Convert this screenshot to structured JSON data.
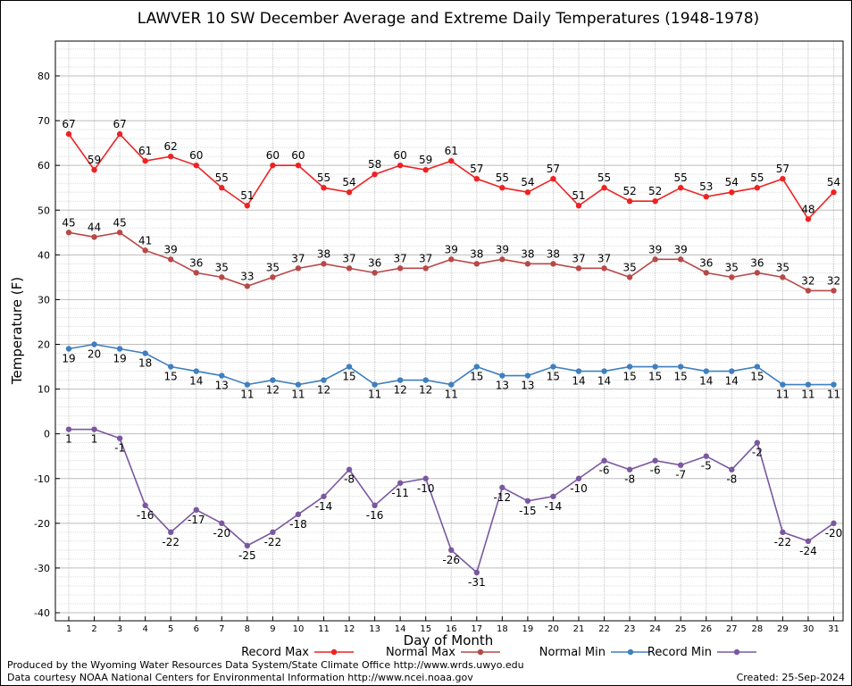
{
  "chart_data": {
    "type": "line",
    "title": "LAWVER 10 SW December Average and Extreme Daily Temperatures (1948-1978)",
    "xlabel": "Day of Month",
    "ylabel": "Temperature (F)",
    "ylim": [
      -40,
      80
    ],
    "x": [
      1,
      2,
      3,
      4,
      5,
      6,
      7,
      8,
      9,
      10,
      11,
      12,
      13,
      14,
      15,
      16,
      17,
      18,
      19,
      20,
      21,
      22,
      23,
      24,
      25,
      26,
      27,
      28,
      29,
      30,
      31
    ],
    "yticks": [
      -40,
      -30,
      -20,
      -10,
      0,
      10,
      20,
      30,
      40,
      50,
      60,
      70,
      80
    ],
    "grid": true,
    "legend_position": "bottom",
    "series": [
      {
        "name": "Record Max",
        "color": "#ee2222",
        "values": [
          67,
          59,
          67,
          61,
          62,
          60,
          55,
          51,
          60,
          60,
          55,
          54,
          58,
          60,
          59,
          61,
          57,
          55,
          54,
          57,
          51,
          55,
          52,
          52,
          55,
          53,
          54,
          55,
          57,
          48,
          54
        ]
      },
      {
        "name": "Normal Max",
        "color": "#b84848",
        "values": [
          45,
          44,
          45,
          41,
          39,
          36,
          35,
          33,
          35,
          37,
          38,
          37,
          36,
          37,
          37,
          39,
          38,
          39,
          38,
          38,
          37,
          37,
          35,
          39,
          39,
          36,
          35,
          36,
          35,
          32,
          32
        ]
      },
      {
        "name": "Normal Min",
        "color": "#3f7fc0",
        "values": [
          19,
          20,
          19,
          18,
          15,
          14,
          13,
          11,
          12,
          11,
          12,
          15,
          11,
          12,
          12,
          11,
          15,
          13,
          13,
          15,
          14,
          14,
          15,
          15,
          15,
          14,
          14,
          15,
          11,
          11,
          11
        ]
      },
      {
        "name": "Record Min",
        "color": "#7a58a0",
        "values": [
          1,
          1,
          -1,
          -16,
          -22,
          -17,
          -20,
          -25,
          -22,
          -18,
          -14,
          -8,
          -16,
          -11,
          -10,
          -26,
          -31,
          -12,
          -15,
          -14,
          -10,
          -6,
          -8,
          -6,
          -7,
          -5,
          -8,
          -2,
          -22,
          -24,
          -20
        ]
      }
    ]
  },
  "footer": {
    "produced_by": "Produced by the Wyoming Water Resources Data System/State Climate Office http://www.wrds.uwyo.edu",
    "data_courtesy": "Data courtesy NOAA National Centers for Environmental Information http://www.ncei.noaa.gov",
    "created": "Created:  25-Sep-2024"
  }
}
